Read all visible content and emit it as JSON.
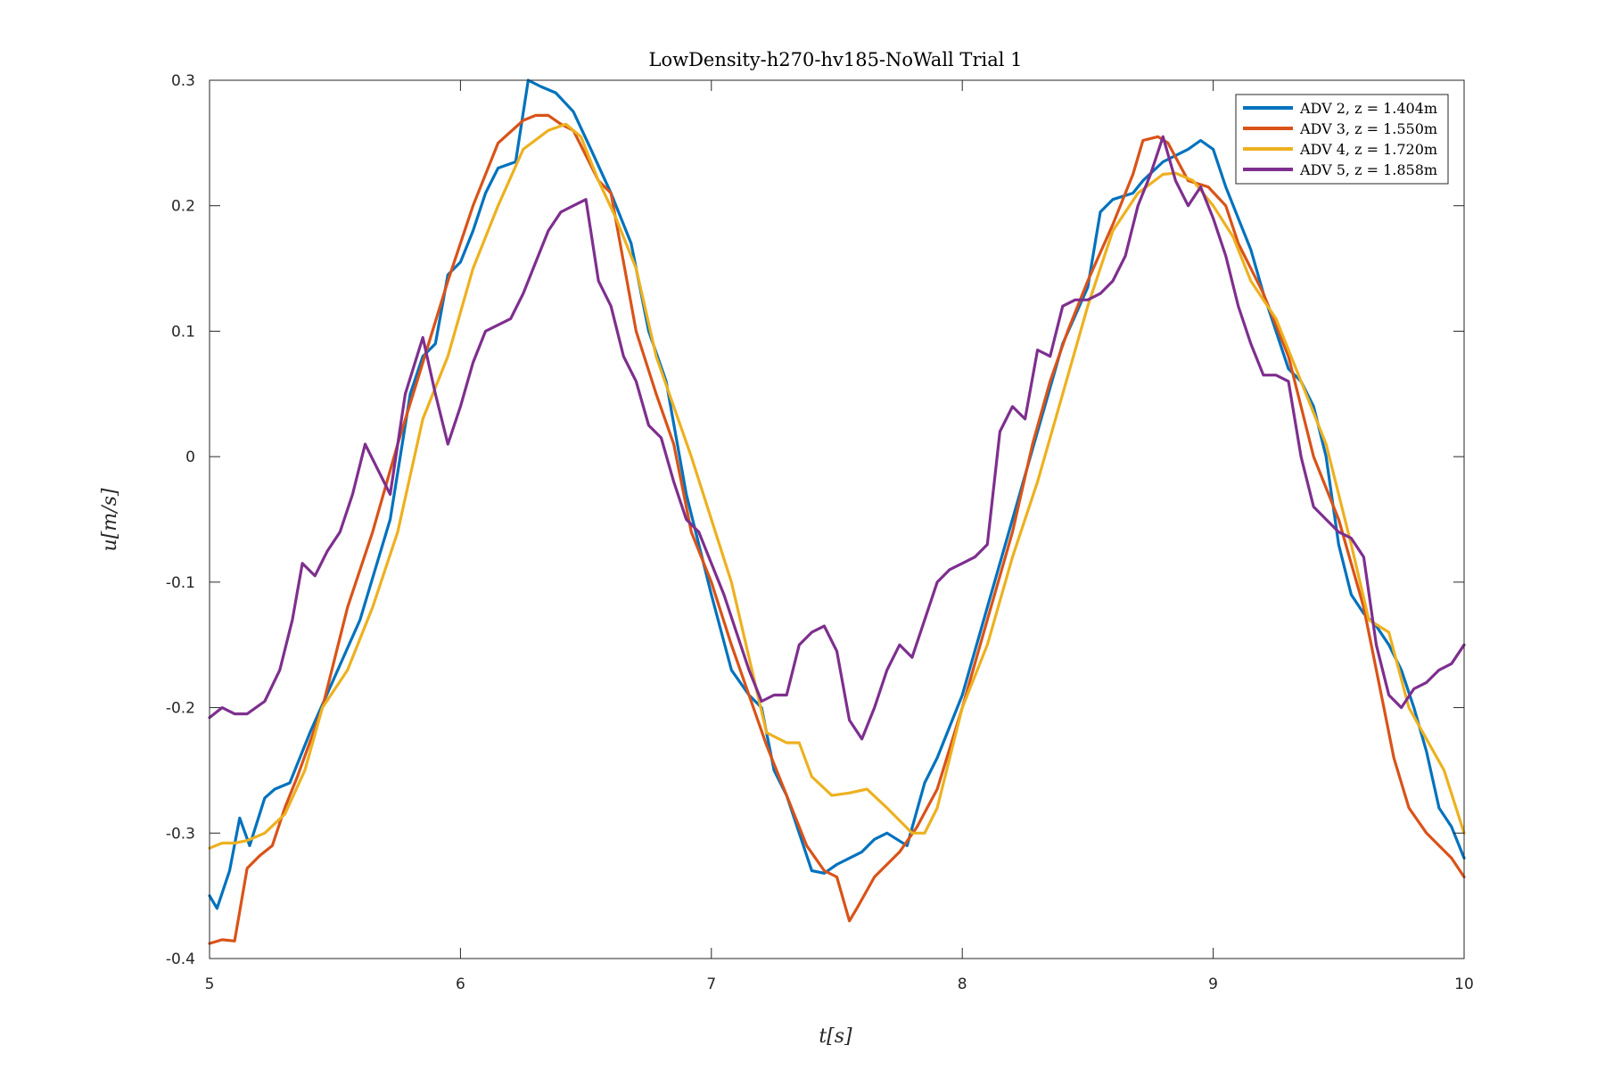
{
  "chart_data": {
    "type": "line",
    "title": "LowDensity-h270-hv185-NoWall Trial 1",
    "xlabel": "t[s]",
    "ylabel": "u[m/s]",
    "xlim": [
      5,
      10
    ],
    "ylim": [
      -0.4,
      0.3
    ],
    "xticks": [
      5,
      6,
      7,
      8,
      9,
      10
    ],
    "yticks": [
      -0.4,
      -0.3,
      -0.2,
      -0.1,
      0,
      0.1,
      0.2,
      0.3
    ],
    "xtick_labels": [
      "5",
      "6",
      "7",
      "8",
      "9",
      "10"
    ],
    "ytick_labels": [
      "-0.4",
      "-0.3",
      "-0.2",
      "-0.1",
      "0",
      "0.1",
      "0.2",
      "0.3"
    ],
    "legend_position": "top-right",
    "grid": false,
    "series": [
      {
        "name": "ADV 2, z = 1.404m",
        "color": "#0072BD",
        "x": [
          5.0,
          5.03,
          5.08,
          5.12,
          5.16,
          5.22,
          5.26,
          5.32,
          5.4,
          5.5,
          5.6,
          5.72,
          5.8,
          5.85,
          5.9,
          5.95,
          6.0,
          6.05,
          6.1,
          6.15,
          6.22,
          6.27,
          6.32,
          6.38,
          6.45,
          6.52,
          6.6,
          6.68,
          6.75,
          6.82,
          6.9,
          7.0,
          7.08,
          7.15,
          7.2,
          7.25,
          7.3,
          7.35,
          7.4,
          7.45,
          7.5,
          7.55,
          7.6,
          7.65,
          7.7,
          7.78,
          7.85,
          7.9,
          8.0,
          8.1,
          8.2,
          8.3,
          8.4,
          8.5,
          8.55,
          8.6,
          8.68,
          8.72,
          8.8,
          8.85,
          8.9,
          8.95,
          9.0,
          9.05,
          9.1,
          9.15,
          9.2,
          9.25,
          9.3,
          9.35,
          9.4,
          9.45,
          9.5,
          9.55,
          9.6,
          9.65,
          9.7,
          9.75,
          9.8,
          9.85,
          9.9,
          9.95,
          10.0
        ],
        "y": [
          -0.35,
          -0.36,
          -0.33,
          -0.288,
          -0.31,
          -0.272,
          -0.265,
          -0.26,
          -0.22,
          -0.175,
          -0.13,
          -0.05,
          0.05,
          0.08,
          0.09,
          0.145,
          0.155,
          0.18,
          0.21,
          0.23,
          0.235,
          0.3,
          0.295,
          0.29,
          0.275,
          0.245,
          0.21,
          0.17,
          0.1,
          0.06,
          -0.03,
          -0.11,
          -0.17,
          -0.19,
          -0.2,
          -0.25,
          -0.27,
          -0.3,
          -0.33,
          -0.332,
          -0.325,
          -0.32,
          -0.315,
          -0.305,
          -0.3,
          -0.31,
          -0.26,
          -0.24,
          -0.19,
          -0.12,
          -0.05,
          0.02,
          0.09,
          0.135,
          0.195,
          0.205,
          0.21,
          0.22,
          0.235,
          0.24,
          0.245,
          0.252,
          0.245,
          0.215,
          0.19,
          0.165,
          0.13,
          0.1,
          0.07,
          0.06,
          0.04,
          0.0,
          -0.07,
          -0.11,
          -0.125,
          -0.135,
          -0.15,
          -0.17,
          -0.2,
          -0.235,
          -0.28,
          -0.295,
          -0.32
        ]
      },
      {
        "name": "ADV 3, z = 1.550m",
        "color": "#D95319",
        "x": [
          5.0,
          5.05,
          5.1,
          5.15,
          5.2,
          5.25,
          5.3,
          5.35,
          5.45,
          5.55,
          5.65,
          5.75,
          5.85,
          5.95,
          6.05,
          6.15,
          6.25,
          6.3,
          6.35,
          6.4,
          6.45,
          6.5,
          6.55,
          6.6,
          6.7,
          6.78,
          6.85,
          6.92,
          7.0,
          7.08,
          7.15,
          7.22,
          7.3,
          7.38,
          7.45,
          7.5,
          7.55,
          7.58,
          7.65,
          7.75,
          7.82,
          7.9,
          8.0,
          8.1,
          8.2,
          8.28,
          8.35,
          8.42,
          8.5,
          8.6,
          8.68,
          8.72,
          8.78,
          8.82,
          8.9,
          8.98,
          9.05,
          9.1,
          9.2,
          9.3,
          9.4,
          9.5,
          9.6,
          9.68,
          9.72,
          9.78,
          9.85,
          9.9,
          9.95,
          10.0
        ],
        "y": [
          -0.388,
          -0.385,
          -0.386,
          -0.328,
          -0.318,
          -0.31,
          -0.28,
          -0.255,
          -0.2,
          -0.12,
          -0.06,
          0.01,
          0.075,
          0.14,
          0.2,
          0.25,
          0.268,
          0.272,
          0.272,
          0.265,
          0.26,
          0.24,
          0.22,
          0.21,
          0.1,
          0.05,
          0.01,
          -0.06,
          -0.1,
          -0.15,
          -0.19,
          -0.23,
          -0.27,
          -0.31,
          -0.33,
          -0.335,
          -0.37,
          -0.36,
          -0.335,
          -0.315,
          -0.295,
          -0.265,
          -0.2,
          -0.13,
          -0.06,
          0.01,
          0.06,
          0.1,
          0.14,
          0.185,
          0.225,
          0.252,
          0.255,
          0.25,
          0.22,
          0.215,
          0.2,
          0.17,
          0.13,
          0.08,
          0.0,
          -0.05,
          -0.12,
          -0.2,
          -0.24,
          -0.28,
          -0.3,
          -0.31,
          -0.32,
          -0.335
        ]
      },
      {
        "name": "ADV 4, z = 1.720m",
        "color": "#EDB120",
        "x": [
          5.0,
          5.05,
          5.1,
          5.15,
          5.22,
          5.3,
          5.38,
          5.45,
          5.55,
          5.65,
          5.75,
          5.85,
          5.95,
          6.05,
          6.15,
          6.25,
          6.35,
          6.42,
          6.48,
          6.55,
          6.62,
          6.7,
          6.78,
          6.85,
          6.92,
          7.0,
          7.08,
          7.15,
          7.22,
          7.3,
          7.35,
          7.4,
          7.48,
          7.55,
          7.62,
          7.7,
          7.8,
          7.85,
          7.9,
          8.0,
          8.1,
          8.2,
          8.3,
          8.4,
          8.5,
          8.6,
          8.7,
          8.8,
          8.85,
          8.92,
          9.0,
          9.08,
          9.15,
          9.25,
          9.35,
          9.45,
          9.55,
          9.62,
          9.7,
          9.78,
          9.85,
          9.92,
          10.0
        ],
        "y": [
          -0.312,
          -0.308,
          -0.308,
          -0.306,
          -0.3,
          -0.285,
          -0.25,
          -0.2,
          -0.17,
          -0.12,
          -0.06,
          0.03,
          0.08,
          0.15,
          0.2,
          0.245,
          0.26,
          0.265,
          0.255,
          0.22,
          0.19,
          0.15,
          0.08,
          0.04,
          0.0,
          -0.05,
          -0.1,
          -0.16,
          -0.22,
          -0.228,
          -0.228,
          -0.255,
          -0.27,
          -0.268,
          -0.265,
          -0.28,
          -0.3,
          -0.3,
          -0.28,
          -0.2,
          -0.15,
          -0.08,
          -0.02,
          0.05,
          0.12,
          0.18,
          0.21,
          0.225,
          0.226,
          0.22,
          0.2,
          0.175,
          0.14,
          0.11,
          0.06,
          0.01,
          -0.07,
          -0.13,
          -0.14,
          -0.2,
          -0.225,
          -0.25,
          -0.3
        ]
      },
      {
        "name": "ADV 5, z = 1.858m",
        "color": "#7E2F8E",
        "x": [
          5.0,
          5.05,
          5.1,
          5.15,
          5.22,
          5.28,
          5.33,
          5.37,
          5.42,
          5.47,
          5.52,
          5.57,
          5.62,
          5.67,
          5.72,
          5.78,
          5.85,
          5.9,
          5.95,
          6.0,
          6.05,
          6.1,
          6.2,
          6.25,
          6.3,
          6.35,
          6.4,
          6.45,
          6.5,
          6.55,
          6.6,
          6.65,
          6.7,
          6.75,
          6.8,
          6.85,
          6.9,
          6.95,
          7.0,
          7.05,
          7.1,
          7.15,
          7.2,
          7.25,
          7.3,
          7.35,
          7.4,
          7.45,
          7.5,
          7.55,
          7.6,
          7.65,
          7.7,
          7.75,
          7.8,
          7.85,
          7.9,
          7.95,
          8.0,
          8.05,
          8.1,
          8.15,
          8.2,
          8.25,
          8.3,
          8.35,
          8.4,
          8.45,
          8.5,
          8.55,
          8.6,
          8.65,
          8.7,
          8.75,
          8.8,
          8.85,
          8.9,
          8.95,
          9.0,
          9.05,
          9.1,
          9.15,
          9.2,
          9.25,
          9.3,
          9.35,
          9.4,
          9.45,
          9.5,
          9.55,
          9.6,
          9.65,
          9.7,
          9.75,
          9.8,
          9.85,
          9.9,
          9.95,
          10.0
        ],
        "y": [
          -0.208,
          -0.2,
          -0.205,
          -0.205,
          -0.195,
          -0.17,
          -0.13,
          -0.085,
          -0.095,
          -0.075,
          -0.06,
          -0.03,
          0.01,
          -0.01,
          -0.03,
          0.05,
          0.095,
          0.05,
          0.01,
          0.04,
          0.075,
          0.1,
          0.11,
          0.13,
          0.155,
          0.18,
          0.195,
          0.2,
          0.205,
          0.14,
          0.12,
          0.08,
          0.06,
          0.025,
          0.015,
          -0.02,
          -0.05,
          -0.06,
          -0.085,
          -0.11,
          -0.14,
          -0.17,
          -0.195,
          -0.19,
          -0.19,
          -0.15,
          -0.14,
          -0.135,
          -0.155,
          -0.21,
          -0.225,
          -0.2,
          -0.17,
          -0.15,
          -0.16,
          -0.13,
          -0.1,
          -0.09,
          -0.085,
          -0.08,
          -0.07,
          0.02,
          0.04,
          0.03,
          0.085,
          0.08,
          0.12,
          0.125,
          0.125,
          0.13,
          0.14,
          0.16,
          0.2,
          0.225,
          0.255,
          0.22,
          0.2,
          0.215,
          0.19,
          0.16,
          0.12,
          0.09,
          0.065,
          0.065,
          0.06,
          0.0,
          -0.04,
          -0.05,
          -0.06,
          -0.065,
          -0.08,
          -0.15,
          -0.19,
          -0.2,
          -0.185,
          -0.18,
          -0.17,
          -0.165,
          -0.15
        ]
      }
    ]
  }
}
